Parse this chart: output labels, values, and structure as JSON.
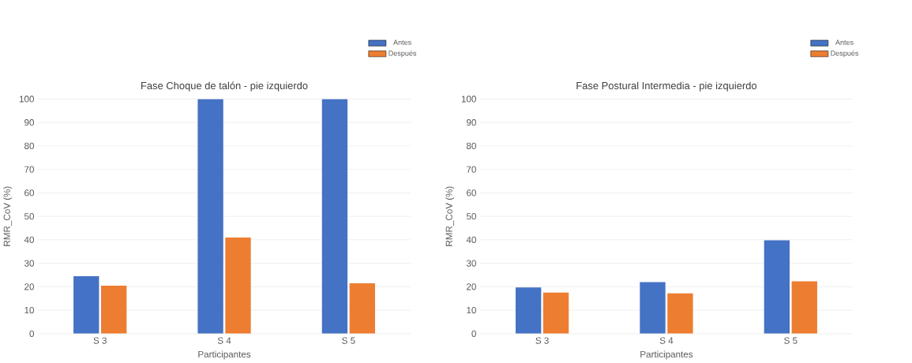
{
  "chart_data": [
    {
      "type": "bar",
      "title": "Fase Choque de talón - pie izquierdo",
      "xlabel": "Participantes",
      "ylabel": "RMR_CoV (%)",
      "categories": [
        "S 3",
        "S 4",
        "S 5"
      ],
      "series": [
        {
          "name": "Antes",
          "color": "#4472c4",
          "values": [
            24.5,
            100,
            100
          ]
        },
        {
          "name": "Después",
          "color": "#ed7d31",
          "values": [
            20.5,
            41,
            21.5
          ]
        }
      ],
      "ylim": [
        0,
        100
      ],
      "yticks": [
        0,
        10,
        20,
        30,
        40,
        50,
        60,
        70,
        80,
        90,
        100
      ],
      "grid": "y",
      "legend": "top right"
    },
    {
      "type": "bar",
      "title": "Fase Postural Intermedia - pie izquierdo",
      "xlabel": "Participantes",
      "ylabel": "RMR_CoV (%)",
      "categories": [
        "S 3",
        "S 4",
        "S 5"
      ],
      "series": [
        {
          "name": "Antes",
          "color": "#4472c4",
          "values": [
            19.7,
            22,
            39.8
          ]
        },
        {
          "name": "Después",
          "color": "#ed7d31",
          "values": [
            17.5,
            17.2,
            22.3
          ]
        }
      ],
      "ylim": [
        0,
        100
      ],
      "yticks": [
        0,
        10,
        20,
        30,
        40,
        50,
        60,
        70,
        80,
        90,
        100
      ],
      "grid": "y",
      "legend": "top right"
    }
  ]
}
